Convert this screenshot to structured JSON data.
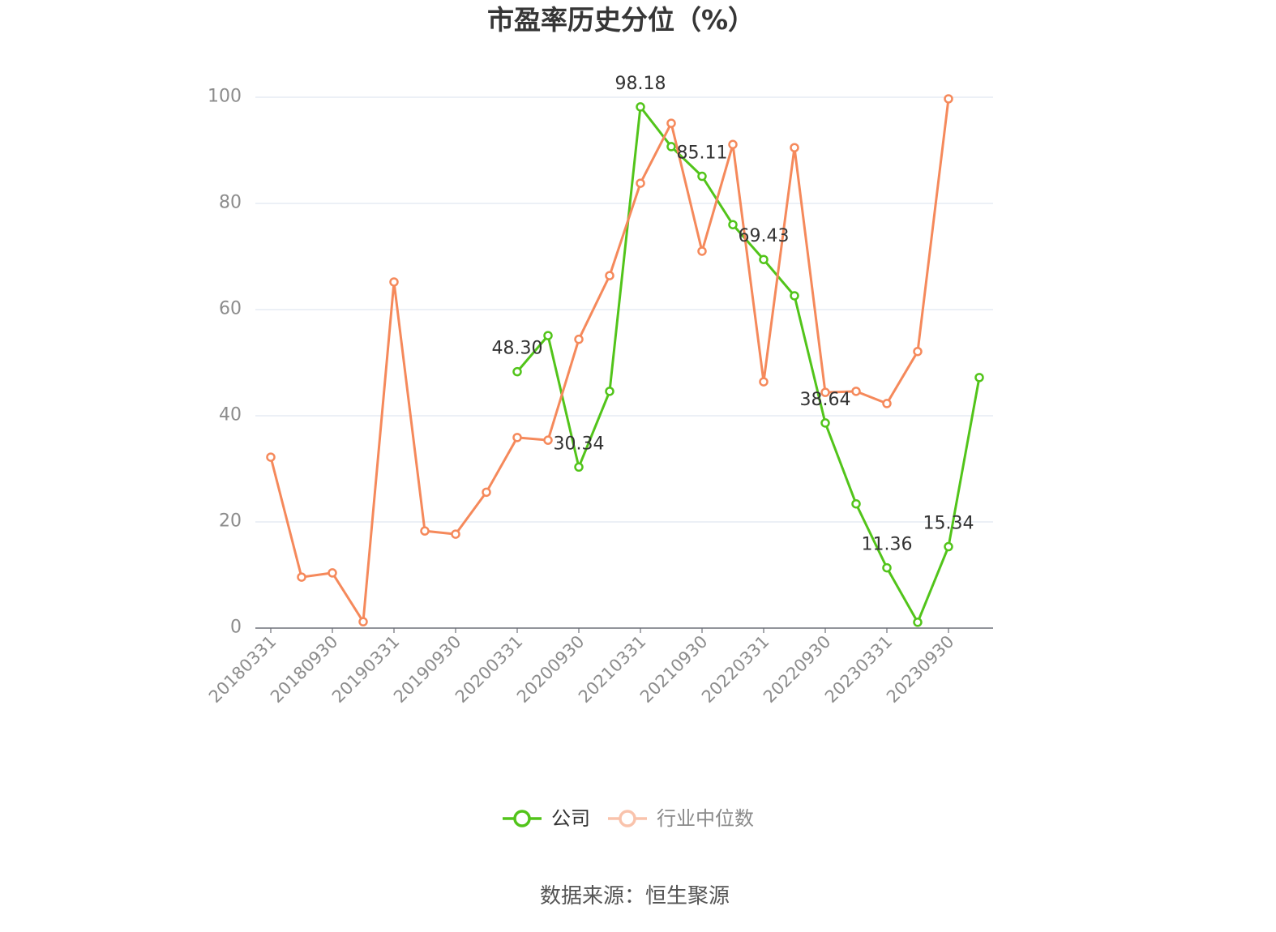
{
  "chart_data": {
    "type": "line",
    "title": "市盈率历史分位（%）",
    "categories": [
      "20180331",
      "",
      "20180930",
      "",
      "20190331",
      "",
      "20190930",
      "",
      "20200331",
      "",
      "20200930",
      "",
      "20210331",
      "",
      "20210930",
      "",
      "20220331",
      "",
      "20220930",
      "",
      "20230331",
      "",
      "20230930",
      ""
    ],
    "yticks": [
      0,
      20,
      40,
      60,
      80,
      100
    ],
    "ylim": [
      0,
      100
    ],
    "grid": true,
    "legend_position": "bottom",
    "series": [
      {
        "name": "公司",
        "color": "#52c41a",
        "values": [
          null,
          null,
          null,
          null,
          null,
          null,
          null,
          null,
          48.3,
          55.1,
          30.34,
          44.6,
          98.18,
          90.7,
          85.11,
          76.0,
          69.43,
          62.6,
          38.64,
          23.4,
          11.36,
          1.1,
          15.34,
          47.2
        ],
        "data_labels": [
          null,
          null,
          null,
          null,
          null,
          null,
          null,
          null,
          "48.30",
          null,
          "30.34",
          null,
          "98.18",
          null,
          "85.11",
          null,
          "69.43",
          null,
          "38.64",
          null,
          "11.36",
          null,
          "15.34",
          null
        ]
      },
      {
        "name": "行业中位数",
        "color": "#f5895b",
        "values": [
          32.2,
          9.6,
          10.4,
          1.2,
          65.2,
          18.3,
          17.7,
          25.6,
          35.9,
          35.4,
          54.4,
          66.4,
          83.8,
          95.1,
          71.0,
          91.1,
          46.4,
          90.5,
          44.4,
          44.6,
          42.3,
          52.1,
          99.7,
          null
        ]
      }
    ]
  },
  "legend_icon": "line-circle-icon",
  "source": "数据来源：恒生聚源"
}
